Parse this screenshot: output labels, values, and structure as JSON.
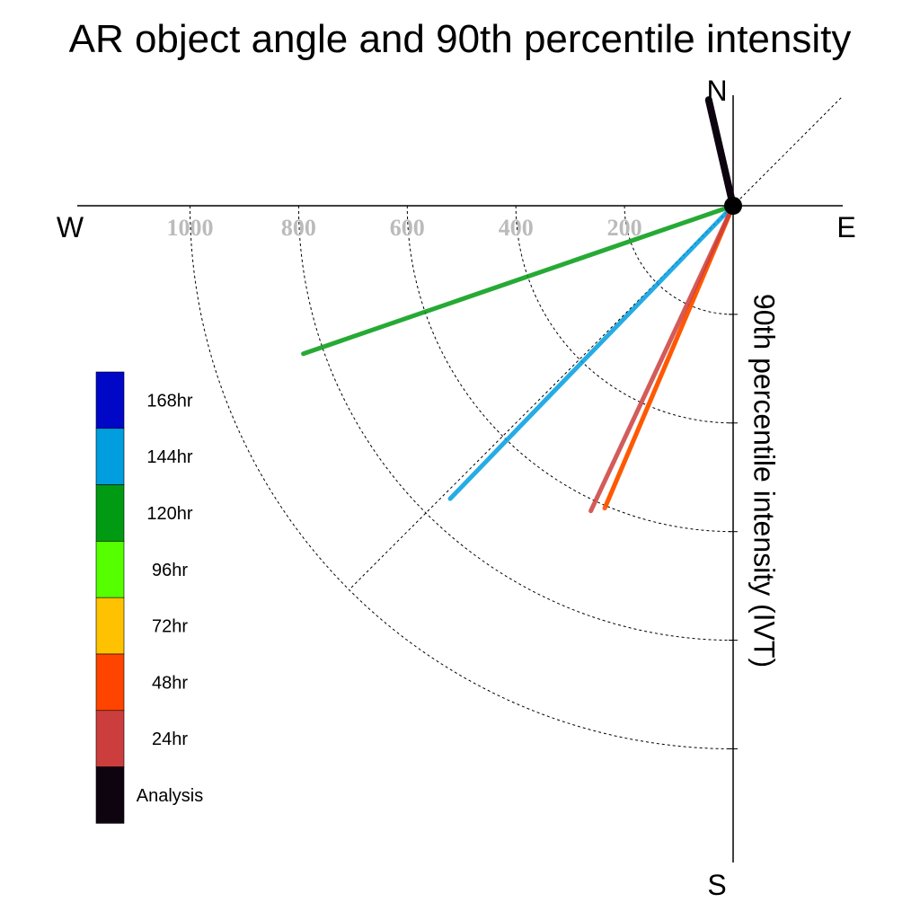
{
  "chart_data": {
    "type": "polar-vector",
    "title": "AR object angle and 90th percentile intensity",
    "radial_label": "90th percentile intensity (IVT)",
    "compass": {
      "north": "N",
      "south": "S",
      "east": "E",
      "west": "W"
    },
    "radial_ticks": [
      200,
      400,
      600,
      800,
      1000
    ],
    "radial_max": 1200,
    "angle_convention": "degrees clockwise from north",
    "series": [
      {
        "name": "Analysis",
        "color": "#0d0410",
        "angle_deg": 347,
        "value": 200
      },
      {
        "name": "24hr",
        "color": "#cc3e3e",
        "angle_deg": 205,
        "value": 620
      },
      {
        "name": "48hr",
        "color": "#ff4400",
        "angle_deg": 203,
        "value": 605
      },
      {
        "name": "72hr",
        "color": "#ffc200",
        "angle_deg": 203,
        "value": 600
      },
      {
        "name": "96hr",
        "color": "#55ff00",
        "angle_deg": 250,
        "value": 0
      },
      {
        "name": "120hr",
        "color": "#009b12",
        "angle_deg": 251,
        "value": 837
      },
      {
        "name": "144hr",
        "color": "#009ddf",
        "angle_deg": 224,
        "value": 750
      },
      {
        "name": "168hr",
        "color": "#0007c7",
        "angle_deg": 224,
        "value": 0
      }
    ],
    "legend": {
      "placement": "left",
      "entries": [
        "168hr",
        "144hr",
        "120hr",
        "96hr",
        "72hr",
        "48hr",
        "24hr",
        "Analysis"
      ]
    }
  }
}
